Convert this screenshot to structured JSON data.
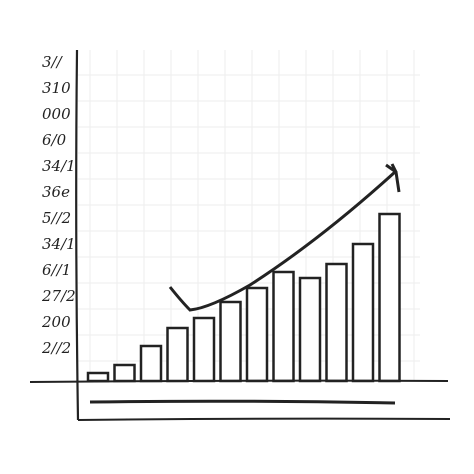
{
  "chart_data": {
    "type": "bar",
    "y_axis_texts": [
      "3//",
      "310",
      "000",
      "6/0",
      "34/1",
      "36e",
      "5//2",
      "34/1",
      "6//1",
      "27/2",
      "200",
      "2//2"
    ],
    "values": [
      8,
      16,
      35,
      53,
      63,
      79,
      93,
      109,
      103,
      117,
      137,
      167
    ],
    "ylim": [
      0,
      330
    ],
    "color": "#ffffff",
    "grid": true
  }
}
